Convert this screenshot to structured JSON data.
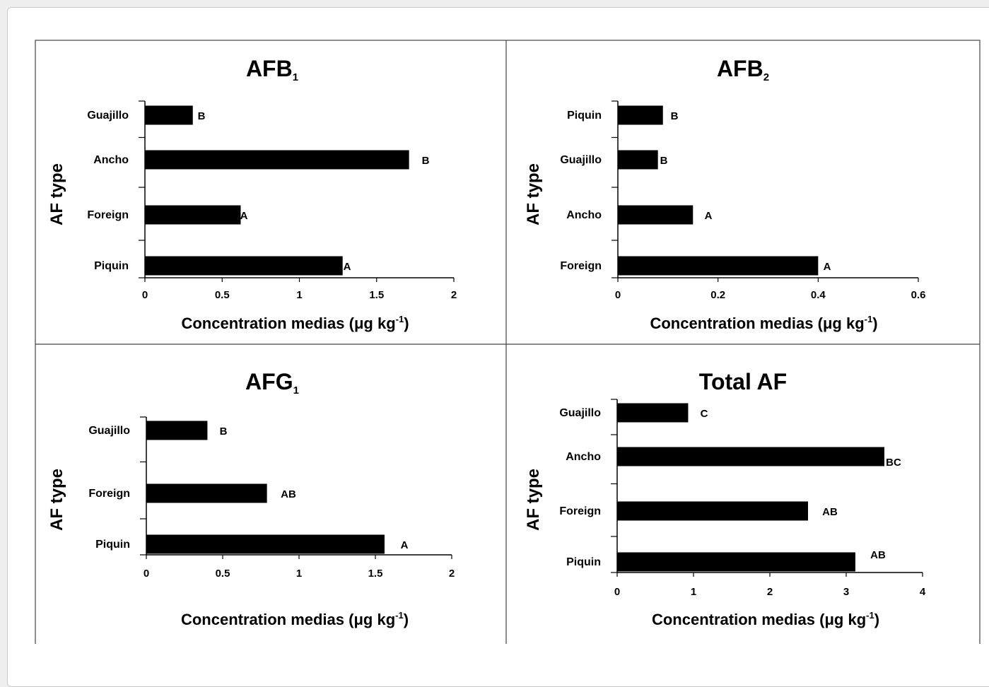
{
  "figure": {
    "ylabel": "AF type",
    "xlabel": {
      "main": "Concentration medias (μg kg",
      "sup": "-1",
      "close": ")"
    }
  },
  "chart_data": [
    {
      "type": "bar",
      "orientation": "horizontal",
      "title": {
        "main": "AFB",
        "sub": "1"
      },
      "categories": [
        "Guajillo",
        "Ancho",
        "Foreign",
        "Piquin"
      ],
      "values": [
        0.31,
        1.71,
        0.62,
        1.28
      ],
      "letters": [
        "B",
        "B",
        "A",
        "A"
      ],
      "xlim": [
        0,
        2
      ],
      "ticks": [
        0,
        0.5,
        1,
        1.5,
        2
      ],
      "tick_labels": [
        "0",
        "0.5",
        "1",
        "1.5",
        "2"
      ],
      "color": "#000000"
    },
    {
      "type": "bar",
      "orientation": "horizontal",
      "title": {
        "main": "AFB",
        "sub": "2"
      },
      "categories": [
        "Piquin",
        "Guajillo",
        "Ancho",
        "Foreign"
      ],
      "values": [
        0.09,
        0.08,
        0.15,
        0.4
      ],
      "letters": [
        "B",
        "B",
        "A",
        "A"
      ],
      "xlim": [
        0,
        0.6
      ],
      "ticks": [
        0,
        0.2,
        0.4,
        0.6
      ],
      "tick_labels": [
        "0",
        "0.2",
        "0.4",
        "0.6"
      ],
      "color": "#000000"
    },
    {
      "type": "bar",
      "orientation": "horizontal",
      "title": {
        "main": "AFG",
        "sub": "1"
      },
      "categories": [
        "Guajillo",
        "Foreign",
        "Piquin"
      ],
      "values": [
        0.4,
        0.79,
        1.56
      ],
      "letters": [
        "B",
        "AB",
        "A"
      ],
      "xlim": [
        0,
        2
      ],
      "ticks": [
        0,
        0.5,
        1,
        1.5,
        2
      ],
      "tick_labels": [
        "0",
        "0.5",
        "1",
        "1.5",
        "2"
      ],
      "color": "#000000"
    },
    {
      "type": "bar",
      "orientation": "horizontal",
      "title": {
        "main": "Total AF",
        "sub": ""
      },
      "categories": [
        "Guajillo",
        "Ancho",
        "Foreign",
        "Piquin"
      ],
      "values": [
        0.93,
        3.5,
        2.5,
        3.12
      ],
      "letters": [
        "C",
        "BC",
        "AB",
        "AB"
      ],
      "xlim": [
        0,
        4
      ],
      "ticks": [
        0,
        1,
        2,
        3,
        4
      ],
      "tick_labels": [
        "0",
        "1",
        "2",
        "3",
        "4"
      ],
      "color": "#000000"
    }
  ]
}
